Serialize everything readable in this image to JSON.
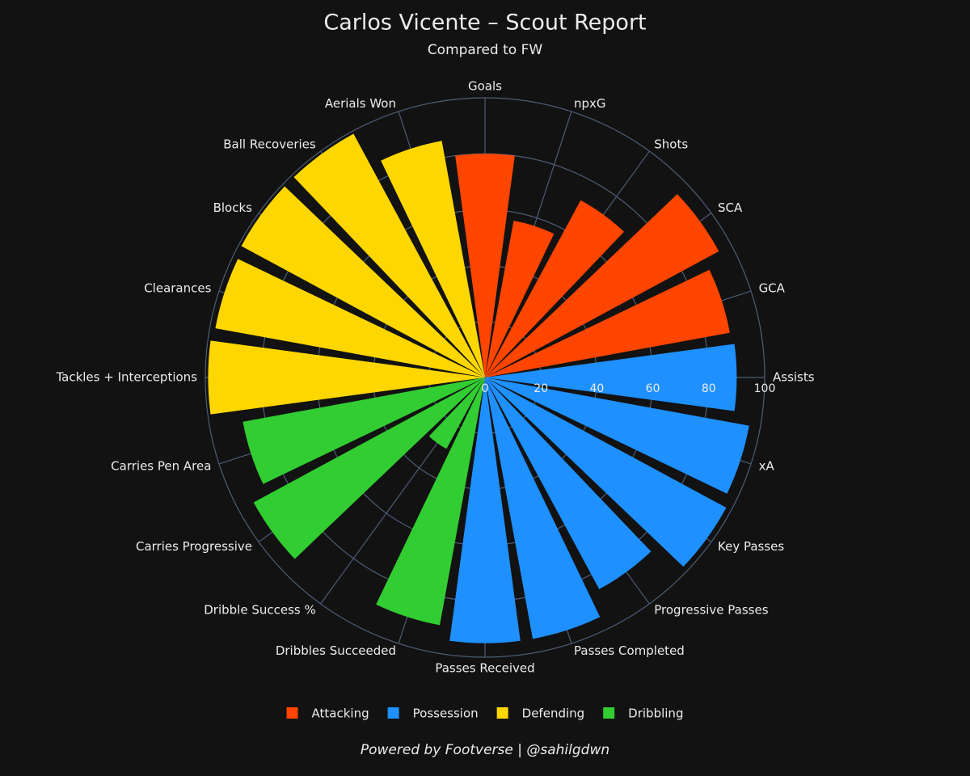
{
  "chart_data": {
    "type": "polar-bar",
    "title": "Carlos Vicente – Scout Report",
    "subtitle": "Compared to FW",
    "footer": "Powered by Footverse | @sahilgdwn",
    "categories": [
      "Goals",
      "npxG",
      "Shots",
      "SCA",
      "GCA",
      "Assists",
      "xA",
      "Key Passes",
      "Progressive Passes",
      "Passes Completed",
      "Passes Received",
      "Dribbles Succeeded",
      "Dribble Success %",
      "Carries Progressive",
      "Carries Pen Area",
      "Tackles + Interceptions",
      "Clearances",
      "Blocks",
      "Ball Recoveries",
      "Aerials Won"
    ],
    "series": [
      {
        "name": "Attacking",
        "color": "#ff4500",
        "values": [
          80,
          57,
          72,
          95,
          89,
          null,
          null,
          null,
          null,
          null,
          null,
          null,
          null,
          null,
          null,
          null,
          null,
          null,
          null,
          null
        ]
      },
      {
        "name": "Possession",
        "color": "#1e90ff",
        "values": [
          null,
          null,
          null,
          null,
          null,
          90,
          96,
          98,
          86,
          95,
          95,
          null,
          null,
          null,
          null,
          null,
          null,
          null,
          null,
          null
        ]
      },
      {
        "name": "Defending",
        "color": "#ffd700",
        "values": [
          null,
          null,
          null,
          null,
          null,
          null,
          null,
          null,
          null,
          null,
          null,
          null,
          null,
          null,
          null,
          99,
          98,
          99,
          99,
          86
        ]
      },
      {
        "name": "Dribbling",
        "color": "#32cd32",
        "values": [
          null,
          null,
          null,
          null,
          null,
          null,
          null,
          null,
          null,
          null,
          null,
          90,
          29,
          94,
          88,
          null,
          null,
          null,
          null,
          null
        ]
      }
    ],
    "ylim": [
      0,
      100
    ],
    "yticks": [
      0,
      20,
      40,
      60,
      80,
      100
    ],
    "grid": true
  }
}
